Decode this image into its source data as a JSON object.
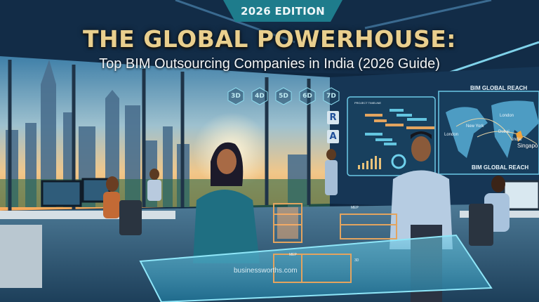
{
  "badge": {
    "label": "2026 EDITION"
  },
  "headline": {
    "title": "THE GLOBAL POWERHOUSE:",
    "subtitle": "Top BIM Outsourcing Companies in India (2026 Guide)"
  },
  "dimensions": [
    "3D",
    "4D",
    "5D",
    "6D",
    "7D"
  ],
  "software_tiles": [
    "R",
    "A"
  ],
  "dashboard": {
    "title": "PROJECT TIMELINE"
  },
  "map_panel": {
    "title": "BIM GLOBAL REACH",
    "caption": "BIM GLOBAL REACH",
    "cities": [
      "London",
      "New York",
      "London",
      "Dubai",
      "India",
      "Singapo"
    ]
  },
  "models": {
    "label_1": "MEP",
    "label_2": "MEP",
    "label_3": "3D"
  },
  "watermark": "businessworths.com",
  "colors": {
    "badge": "#1e7c8c",
    "title_gold": "#e9cf8e",
    "navy": "#0d2238",
    "hologram": "#5fd3ee"
  }
}
